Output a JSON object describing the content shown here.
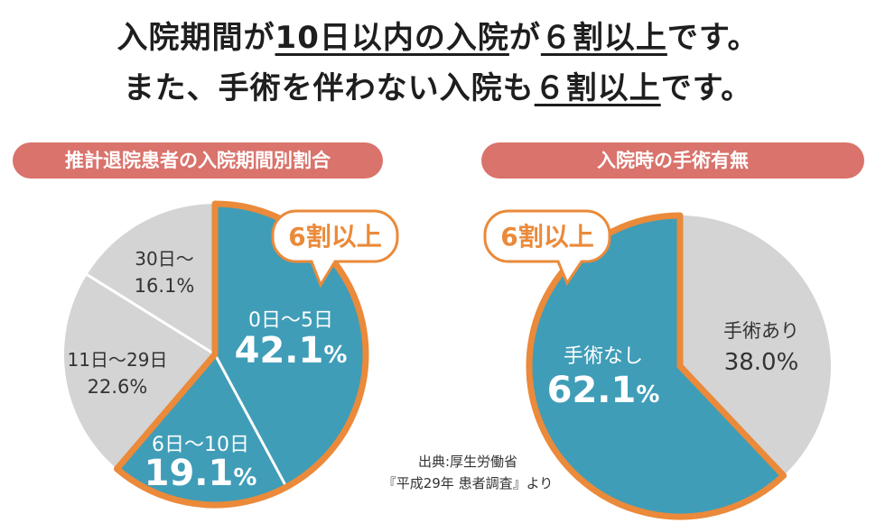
{
  "headline": {
    "line1_a": "入院期間が",
    "line1_u1": "10日以内の入院",
    "line1_b": "が",
    "line1_u2": "６割以上",
    "line1_c": "です。",
    "line2_a": "また、手術を伴わない入院も",
    "line2_u": "６割以上",
    "line2_c": "です。"
  },
  "source": {
    "line1": "出典:厚生労働省",
    "line2": "『平成29年 患者調査』より"
  },
  "colors": {
    "teal": "#3f9db8",
    "gray": "#d4d4d4",
    "orange": "#ea8a3a",
    "pill": "#d9736c"
  },
  "chart_data": [
    {
      "type": "pie",
      "title": "推計退院患者の入院期間別割合",
      "callout": "6割以上",
      "slices": [
        {
          "label": "0日〜5日",
          "value": 42.1,
          "value_text": "42.1",
          "unit": "%",
          "highlight": true
        },
        {
          "label": "6日〜10日",
          "value": 19.1,
          "value_text": "19.1",
          "unit": "%",
          "highlight": true
        },
        {
          "label": "11日〜29日",
          "value": 22.6,
          "value_text": "22.6",
          "unit": "%",
          "highlight": false
        },
        {
          "label": "30日〜",
          "value": 16.1,
          "value_text": "16.1",
          "unit": "%",
          "highlight": false
        }
      ]
    },
    {
      "type": "pie",
      "title": "入院時の手術有無",
      "callout": "6割以上",
      "slices": [
        {
          "label": "手術あり",
          "value": 38.0,
          "value_text": "38.0",
          "unit": "%",
          "highlight": false
        },
        {
          "label": "手術なし",
          "value": 62.1,
          "value_text": "62.1",
          "unit": "%",
          "highlight": true
        }
      ]
    }
  ]
}
